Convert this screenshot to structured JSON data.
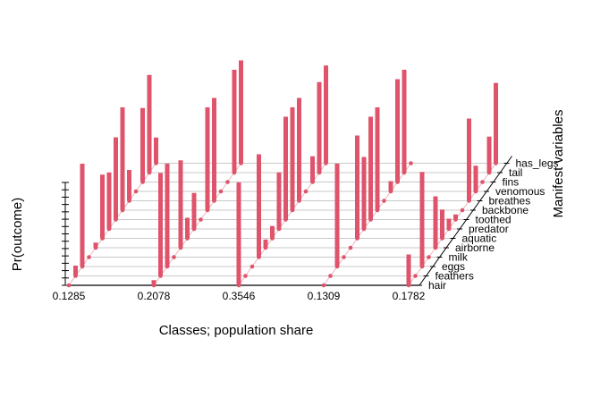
{
  "chart_data": {
    "type": "bar",
    "projection": "3d-perspective",
    "xlabel": "Classes; population share",
    "ylabel": "Manifest variables",
    "zlabel": "Pr(outcome)",
    "x_ticks": [
      "0.1285",
      "0.2078",
      "0.3546",
      "0.1309",
      "0.1782"
    ],
    "y_ticks": [
      "hair",
      "feathers",
      "eggs",
      "milk",
      "airborne",
      "aquatic",
      "predator",
      "toothed",
      "backbone",
      "breathes",
      "venomous",
      "fins",
      "tail",
      "has_legs"
    ],
    "zlim": [
      0,
      1
    ],
    "grid": true,
    "bar_color": "#DF536B",
    "values": [
      [
        0.0,
        0.1,
        1.0,
        0.0,
        0.05,
        0.62,
        0.55,
        0.8,
        1.0,
        0.3,
        0.0,
        0.72,
        0.95,
        0.25
      ],
      [
        0.05,
        1.0,
        1.0,
        0.0,
        0.85,
        0.2,
        0.35,
        0.0,
        1.0,
        1.0,
        0.0,
        0.0,
        1.0,
        1.0
      ],
      [
        1.0,
        0.0,
        0.0,
        1.0,
        0.08,
        0.12,
        0.55,
        1.0,
        1.0,
        1.0,
        0.0,
        0.25,
        0.88,
        0.95
      ],
      [
        0.0,
        0.0,
        1.0,
        0.0,
        0.0,
        1.0,
        0.7,
        1.0,
        1.0,
        0.0,
        0.1,
        1.0,
        1.0,
        0.0
      ],
      [
        0.3,
        0.0,
        0.92,
        0.0,
        0.5,
        0.28,
        0.1,
        0.05,
        0.0,
        0.8,
        0.25,
        0.0,
        0.35,
        0.78
      ]
    ]
  }
}
